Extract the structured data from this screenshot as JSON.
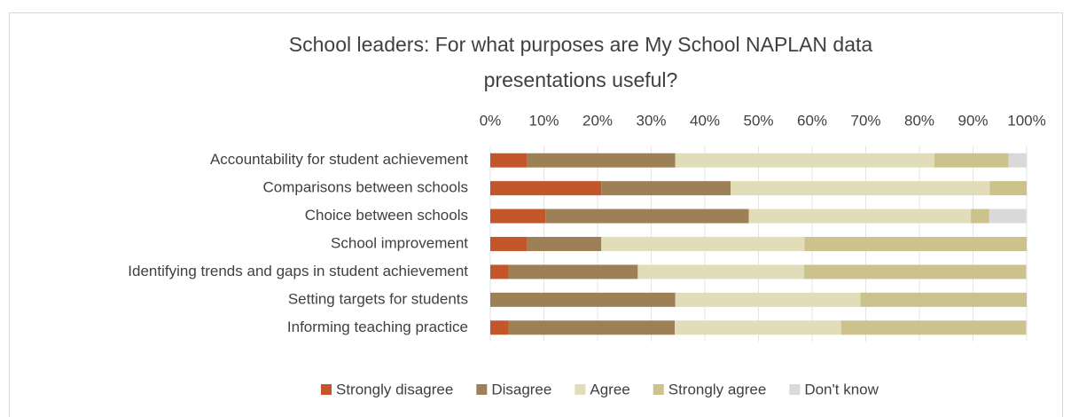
{
  "chart_data": {
    "type": "stacked_barh",
    "title": "School leaders: For what purposes are My School NAPLAN data presentations useful?",
    "categories": [
      "Accountability for student achievement",
      "Comparisons between schools",
      "Choice between schools",
      "School improvement",
      "Identifying trends and gaps in student achievement",
      "Setting targets for students",
      "Informing teaching practice"
    ],
    "series": [
      {
        "name": "Strongly disagree",
        "color": "#c4562b",
        "values": [
          6.9,
          20.7,
          10.3,
          6.9,
          3.4,
          0,
          3.4
        ]
      },
      {
        "name": "Disagree",
        "color": "#9e8056",
        "values": [
          27.6,
          24.1,
          37.9,
          13.8,
          24.1,
          34.5,
          31.0
        ]
      },
      {
        "name": "Agree",
        "color": "#e1ddb8",
        "values": [
          48.3,
          48.3,
          41.4,
          37.9,
          31.0,
          34.5,
          31.0
        ]
      },
      {
        "name": "Strongly agree",
        "color": "#cbc28c",
        "values": [
          13.8,
          6.9,
          3.4,
          41.4,
          41.4,
          31.0,
          34.5
        ]
      },
      {
        "name": "Don't know",
        "color": "#d9d9d9",
        "values": [
          3.4,
          0,
          6.9,
          0,
          0,
          0,
          0
        ]
      }
    ],
    "xlim": [
      0,
      100
    ],
    "xticks": [
      {
        "value": 0,
        "label": "0%"
      },
      {
        "value": 10,
        "label": "10%"
      },
      {
        "value": 20,
        "label": "20%"
      },
      {
        "value": 30,
        "label": "30%"
      },
      {
        "value": 40,
        "label": "40%"
      },
      {
        "value": 50,
        "label": "50%"
      },
      {
        "value": 60,
        "label": "60%"
      },
      {
        "value": 70,
        "label": "70%"
      },
      {
        "value": 80,
        "label": "80%"
      },
      {
        "value": 90,
        "label": "90%"
      },
      {
        "value": 100,
        "label": "100%"
      }
    ],
    "grid": true,
    "legend": "bottom"
  }
}
